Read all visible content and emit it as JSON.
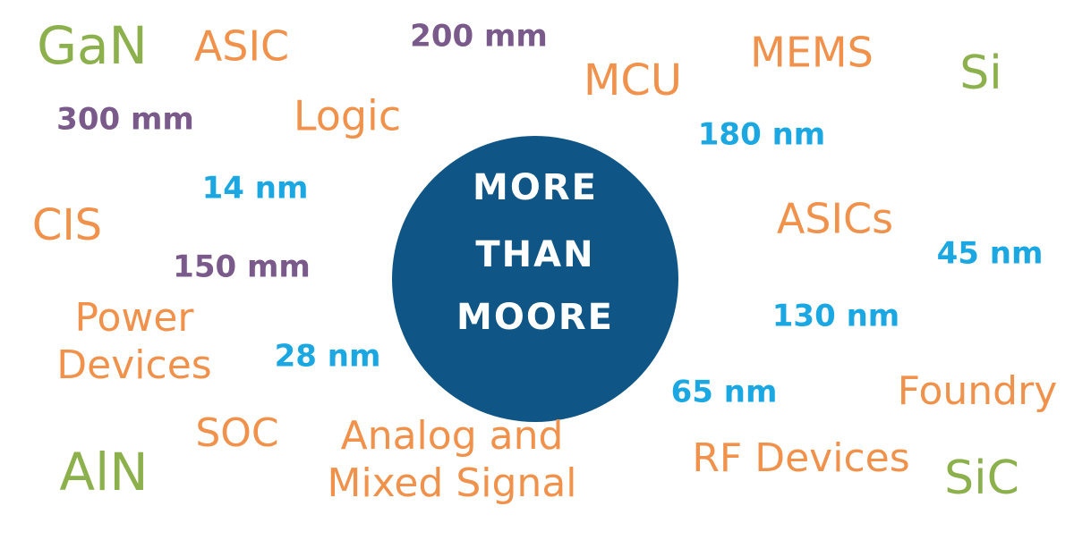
{
  "center": {
    "lines": [
      "MORE",
      "THAN",
      "MOORE"
    ],
    "color": "#0f5585"
  },
  "words": [
    {
      "lines": [
        "GaN"
      ],
      "color": "#8cb04c"
    },
    {
      "lines": [
        "ASIC"
      ],
      "color": "#f0924c"
    },
    {
      "lines": [
        "200 mm"
      ],
      "color": "#7a5a8b"
    },
    {
      "lines": [
        "MCU"
      ],
      "color": "#f0924c"
    },
    {
      "lines": [
        "MEMS"
      ],
      "color": "#f0924c"
    },
    {
      "lines": [
        "Si"
      ],
      "color": "#8cb04c"
    },
    {
      "lines": [
        "300 mm"
      ],
      "color": "#7a5a8b"
    },
    {
      "lines": [
        "Logic"
      ],
      "color": "#f0924c"
    },
    {
      "lines": [
        "180 nm"
      ],
      "color": "#1ba7e1"
    },
    {
      "lines": [
        "14 nm"
      ],
      "color": "#1ba7e1"
    },
    {
      "lines": [
        "CIS"
      ],
      "color": "#f0924c"
    },
    {
      "lines": [
        "ASICs"
      ],
      "color": "#f0924c"
    },
    {
      "lines": [
        "45 nm"
      ],
      "color": "#1ba7e1"
    },
    {
      "lines": [
        "150 mm"
      ],
      "color": "#7a5a8b"
    },
    {
      "lines": [
        "Power",
        "Devices"
      ],
      "color": "#f0924c"
    },
    {
      "lines": [
        "28 nm"
      ],
      "color": "#1ba7e1"
    },
    {
      "lines": [
        "130 nm"
      ],
      "color": "#1ba7e1"
    },
    {
      "lines": [
        "65 nm"
      ],
      "color": "#1ba7e1"
    },
    {
      "lines": [
        "Foundry"
      ],
      "color": "#f0924c"
    },
    {
      "lines": [
        "SOC"
      ],
      "color": "#f0924c"
    },
    {
      "lines": [
        "Analog and",
        "Mixed Signal"
      ],
      "color": "#f0924c"
    },
    {
      "lines": [
        "AlN"
      ],
      "color": "#8cb04c"
    },
    {
      "lines": [
        "RF Devices"
      ],
      "color": "#f0924c"
    },
    {
      "lines": [
        "SiC"
      ],
      "color": "#8cb04c"
    }
  ]
}
